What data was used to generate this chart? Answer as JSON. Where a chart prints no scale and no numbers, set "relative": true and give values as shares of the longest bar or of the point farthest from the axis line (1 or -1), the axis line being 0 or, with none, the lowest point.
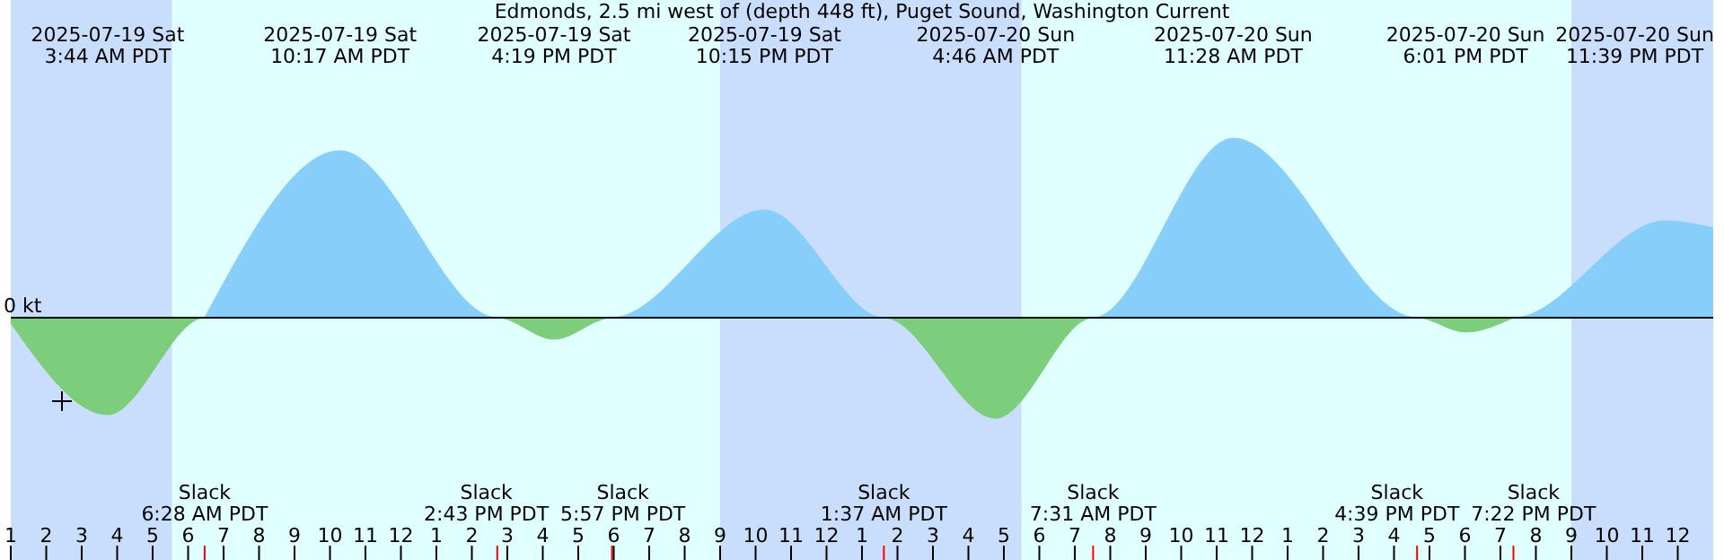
{
  "chart_data": {
    "type": "area",
    "title": "Edmonds, 2.5 mi west of (depth 448 ft), Puget Sound, Washington Current",
    "relative": true,
    "legend": false,
    "grid": false,
    "marker": "none",
    "xlim": [
      "2025-07-19T01:00",
      "2025-07-21T01:00"
    ],
    "xticks": [
      {
        "value": "2025-07-19T01:00",
        "label": "1"
      },
      {
        "value": "2025-07-19T02:00",
        "label": "2"
      },
      {
        "value": "2025-07-19T03:00",
        "label": "3"
      },
      {
        "value": "2025-07-19T04:00",
        "label": "4"
      },
      {
        "value": "2025-07-19T05:00",
        "label": "5"
      },
      {
        "value": "2025-07-19T06:00",
        "label": "6"
      },
      {
        "value": "2025-07-19T07:00",
        "label": "7"
      },
      {
        "value": "2025-07-19T08:00",
        "label": "8"
      },
      {
        "value": "2025-07-19T09:00",
        "label": "9"
      },
      {
        "value": "2025-07-19T10:00",
        "label": "10"
      },
      {
        "value": "2025-07-19T11:00",
        "label": "11"
      },
      {
        "value": "2025-07-19T12:00",
        "label": "12"
      },
      {
        "value": "2025-07-19T13:00",
        "label": "1"
      },
      {
        "value": "2025-07-19T14:00",
        "label": "2"
      },
      {
        "value": "2025-07-19T15:00",
        "label": "3"
      },
      {
        "value": "2025-07-19T16:00",
        "label": "4"
      },
      {
        "value": "2025-07-19T17:00",
        "label": "5"
      },
      {
        "value": "2025-07-19T18:00",
        "label": "6"
      },
      {
        "value": "2025-07-19T19:00",
        "label": "7"
      },
      {
        "value": "2025-07-19T20:00",
        "label": "8"
      },
      {
        "value": "2025-07-19T21:00",
        "label": "9"
      },
      {
        "value": "2025-07-19T22:00",
        "label": "10"
      },
      {
        "value": "2025-07-19T23:00",
        "label": "11"
      },
      {
        "value": "2025-07-20T00:00",
        "label": "12"
      },
      {
        "value": "2025-07-20T01:00",
        "label": "1"
      },
      {
        "value": "2025-07-20T02:00",
        "label": "2"
      },
      {
        "value": "2025-07-20T03:00",
        "label": "3"
      },
      {
        "value": "2025-07-20T04:00",
        "label": "4"
      },
      {
        "value": "2025-07-20T05:00",
        "label": "5"
      },
      {
        "value": "2025-07-20T06:00",
        "label": "6"
      },
      {
        "value": "2025-07-20T07:00",
        "label": "7"
      },
      {
        "value": "2025-07-20T08:00",
        "label": "8"
      },
      {
        "value": "2025-07-20T09:00",
        "label": "9"
      },
      {
        "value": "2025-07-20T10:00",
        "label": "10"
      },
      {
        "value": "2025-07-20T11:00",
        "label": "11"
      },
      {
        "value": "2025-07-20T12:00",
        "label": "12"
      },
      {
        "value": "2025-07-20T13:00",
        "label": "1"
      },
      {
        "value": "2025-07-20T14:00",
        "label": "2"
      },
      {
        "value": "2025-07-20T15:00",
        "label": "3"
      },
      {
        "value": "2025-07-20T16:00",
        "label": "4"
      },
      {
        "value": "2025-07-20T17:00",
        "label": "5"
      },
      {
        "value": "2025-07-20T18:00",
        "label": "6"
      },
      {
        "value": "2025-07-20T19:00",
        "label": "7"
      },
      {
        "value": "2025-07-20T20:00",
        "label": "8"
      },
      {
        "value": "2025-07-20T21:00",
        "label": "9"
      },
      {
        "value": "2025-07-20T22:00",
        "label": "10"
      },
      {
        "value": "2025-07-20T23:00",
        "label": "11"
      },
      {
        "value": "2025-07-21T00:00",
        "label": "12"
      }
    ],
    "series": [
      {
        "color": "#87cefa",
        "x": [
          "2025-07-19T06:28",
          "2025-07-19T10:17",
          "2025-07-19T14:43",
          "2025-07-19T17:57",
          "2025-07-19T22:15",
          "2025-07-20T01:37",
          "2025-07-20T07:31",
          "2025-07-20T11:28",
          "2025-07-20T16:39",
          "2025-07-20T19:22",
          "2025-07-20T23:39",
          "2025-07-21T01:00"
        ],
        "values": [
          0,
          0.93,
          0,
          0,
          0.6,
          0,
          0,
          1,
          0,
          0,
          0.54,
          0.5
        ]
      },
      {
        "color": "#7ccd7c",
        "x": [
          "2025-07-19T01:00",
          "2025-07-19T03:44",
          "2025-07-19T06:28",
          "2025-07-19T14:43",
          "2025-07-19T16:19",
          "2025-07-19T17:57",
          "2025-07-20T01:37",
          "2025-07-20T04:46",
          "2025-07-20T07:31",
          "2025-07-20T16:39",
          "2025-07-20T18:01",
          "2025-07-20T19:22"
        ],
        "values": [
          -0.03,
          -0.54,
          0,
          0,
          -0.12,
          0,
          0,
          -0.56,
          0,
          0,
          -0.08,
          0
        ]
      }
    ],
    "ref_lines": [
      {
        "axis": "y",
        "value": 0,
        "label": "0 kt",
        "color": "#000000"
      }
    ],
    "bands": [
      {
        "axis": "x",
        "from": "2025-07-19T01:00",
        "to": "2025-07-19T05:33",
        "color": "#c9ddfd"
      },
      {
        "axis": "x",
        "from": "2025-07-19T05:33",
        "to": "2025-07-19T21:00",
        "color": "#e0ffff"
      },
      {
        "axis": "x",
        "from": "2025-07-19T21:00",
        "to": "2025-07-20T05:30",
        "color": "#c9ddfd"
      },
      {
        "axis": "x",
        "from": "2025-07-20T05:30",
        "to": "2025-07-20T21:00",
        "color": "#e0ffff"
      },
      {
        "axis": "x",
        "from": "2025-07-20T21:00",
        "to": "2025-07-21T01:00",
        "color": "#c9ddfd"
      }
    ],
    "annotations": [
      "2025-07-19 Sat\n3:44 AM PDT",
      "2025-07-19 Sat\n10:17 AM PDT",
      "2025-07-19 Sat\n4:19 PM PDT",
      "2025-07-19 Sat\n10:15 PM PDT",
      "2025-07-20 Sun\n4:46 AM PDT",
      "2025-07-20 Sun\n11:28 AM PDT",
      "2025-07-20 Sun\n6:01 PM PDT",
      "2025-07-20 Sun\n11:39 PM PDT",
      "Slack\n6:28 AM PDT",
      "Slack\n2:43 PM PDT",
      "Slack\n5:57 PM PDT",
      "Slack\n1:37 AM PDT",
      "Slack\n7:31 AM PDT",
      "Slack\n4:39 PM PDT",
      "Slack\n7:22 PM PDT"
    ]
  }
}
